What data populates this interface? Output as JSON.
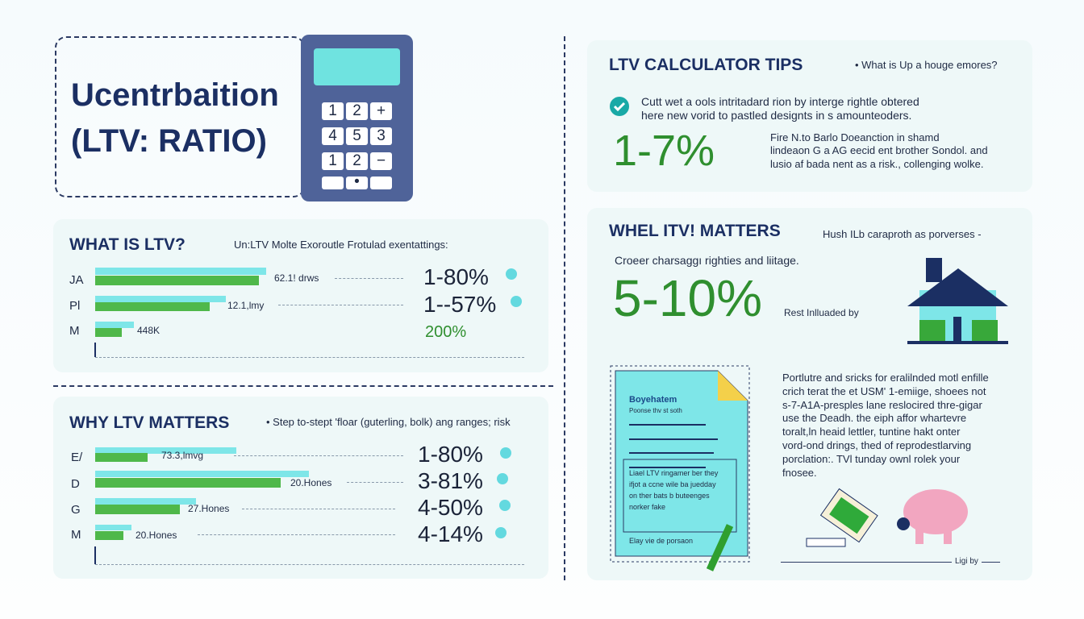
{
  "header": {
    "title_lines": [
      "Ucentrbaition",
      "(LTV: RATIO)"
    ]
  },
  "calculator": {
    "keys": [
      "1",
      "2",
      "+",
      "4",
      "5",
      "3",
      "1",
      "2",
      "−"
    ]
  },
  "what_is": {
    "title": "WHAT IS LTV?",
    "subtitle": "Un:LTV Molte Exoroutle Frotulad exentattings:",
    "rows": [
      {
        "label": "JA",
        "bar_label": "62.1! drws",
        "value": "1-80%"
      },
      {
        "label": "Pl",
        "bar_label": "12.1,lmy",
        "value": "1--57%"
      },
      {
        "label": "M",
        "bar_label": "448K",
        "value": "200%"
      }
    ]
  },
  "why_matters": {
    "title": "WHY LTV MATTERS",
    "subtitle": "• Step to-stept 'floar (guterling, bolk) ang ranges; risk",
    "rows": [
      {
        "label": "E/",
        "bar_label": "73.3,lmvg",
        "value": "1-80%"
      },
      {
        "label": "D",
        "bar_label": "20.Hones",
        "value": "3-81%"
      },
      {
        "label": "G",
        "bar_label": "27.Hones",
        "value": "4-50%"
      },
      {
        "label": "M",
        "bar_label": "20.Hones",
        "value": "4-14%"
      }
    ]
  },
  "tips": {
    "title": "LTV CALCULATOR TIPS",
    "note": "• What is Up a houge emores?",
    "check_text": [
      "Cutt wet a ools intritadard rion by interge rightle obtered",
      "here new vorid to pastled designts in s amounteoders."
    ],
    "big": "1-7%",
    "side": [
      "Fire N.to Barlo Doeanction in shamd",
      "lindeaon G a AG eecid ent brother Sondol. and",
      "lusio af bada nent as a risk., collenging wolke."
    ]
  },
  "matters": {
    "title": "WHEL ITV! MATTERS",
    "note": "Hush ILb caraproth as porverses -",
    "sub": "Croeer charsaggı righties and liitage.",
    "big": "5-10%",
    "side": "Rest Inlluaded by"
  },
  "document": {
    "title": "Boyehatem",
    "line": "Poonse thv st soth",
    "body": [
      "Liael LTV ringamer ber they",
      "ifjot a ccne wile ba juedday",
      "on ther bats b buteenges",
      "norker fake"
    ],
    "footer": "Elay vie de porsaon"
  },
  "text_block": {
    "lines": [
      "Portlutre and sricks for eralilnded motl enfille",
      "crich terat the et USM' 1-emiige, shoees not",
      "s-7-A1A-presples lane reslocired thre-gigar",
      "use the Deadh. the eiph affor whartevre",
      "toralt,ln heaid lettler, tuntine hakt onter",
      "vord-ond drings, thed of reprodestlarving",
      "porclation:. TVl tunday ownl rolek your",
      "fnosee."
    ],
    "caption": "Ligi by"
  }
}
